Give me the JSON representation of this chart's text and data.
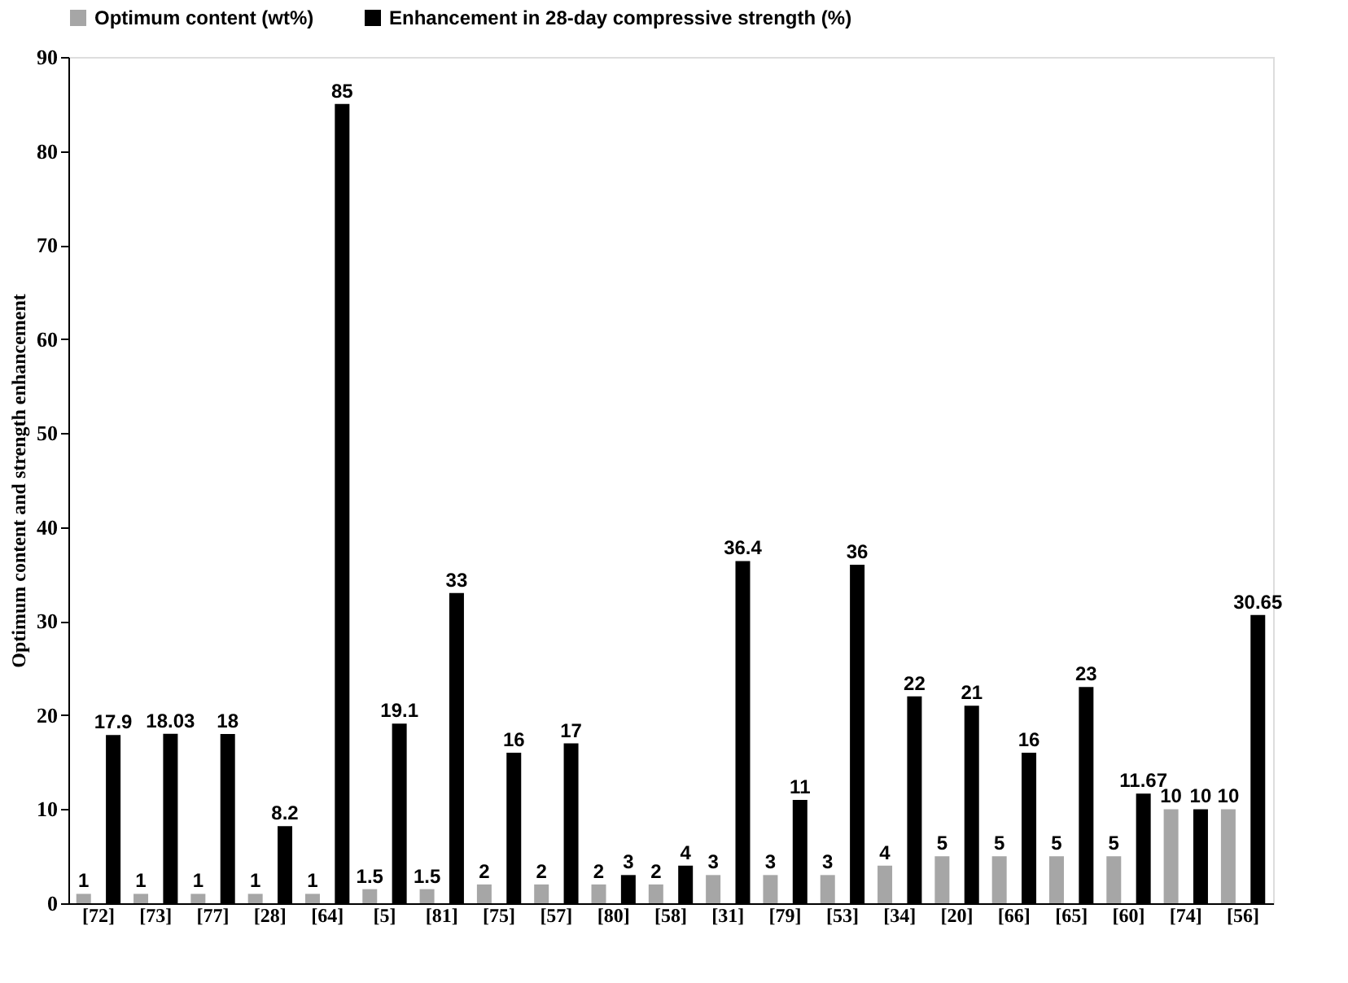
{
  "chart_data": {
    "type": "bar",
    "ylabel": "Optimum content and strength enhancement",
    "categories": [
      "[72]",
      "[73]",
      "[77]",
      "[28]",
      "[64]",
      "[5]",
      "[81]",
      "[75]",
      "[57]",
      "[80]",
      "[58]",
      "[31]",
      "[79]",
      "[53]",
      "[34]",
      "[20]",
      "[66]",
      "[65]",
      "[60]",
      "[74]",
      "[56]"
    ],
    "series": [
      {
        "name": "Optimum content (wt%)",
        "color": "#a6a6a6",
        "values": [
          1,
          1,
          1,
          1,
          1,
          1.5,
          1.5,
          2,
          2,
          2,
          2,
          3,
          3,
          3,
          4,
          5,
          5,
          5,
          5,
          10,
          10
        ]
      },
      {
        "name": "Enhancement in 28-day compressive strength (%)",
        "color": "#000000",
        "values": [
          17.9,
          18.03,
          18,
          8.2,
          85,
          19.1,
          33,
          16,
          17,
          3,
          4,
          36.4,
          11,
          36,
          22,
          21,
          16,
          23,
          11.67,
          10,
          30.65
        ]
      }
    ],
    "ylim": [
      0,
      90
    ],
    "yticks": [
      0,
      10,
      20,
      30,
      40,
      50,
      60,
      70,
      80,
      90
    ],
    "grid": false,
    "legend": "top",
    "data_labels": true
  }
}
